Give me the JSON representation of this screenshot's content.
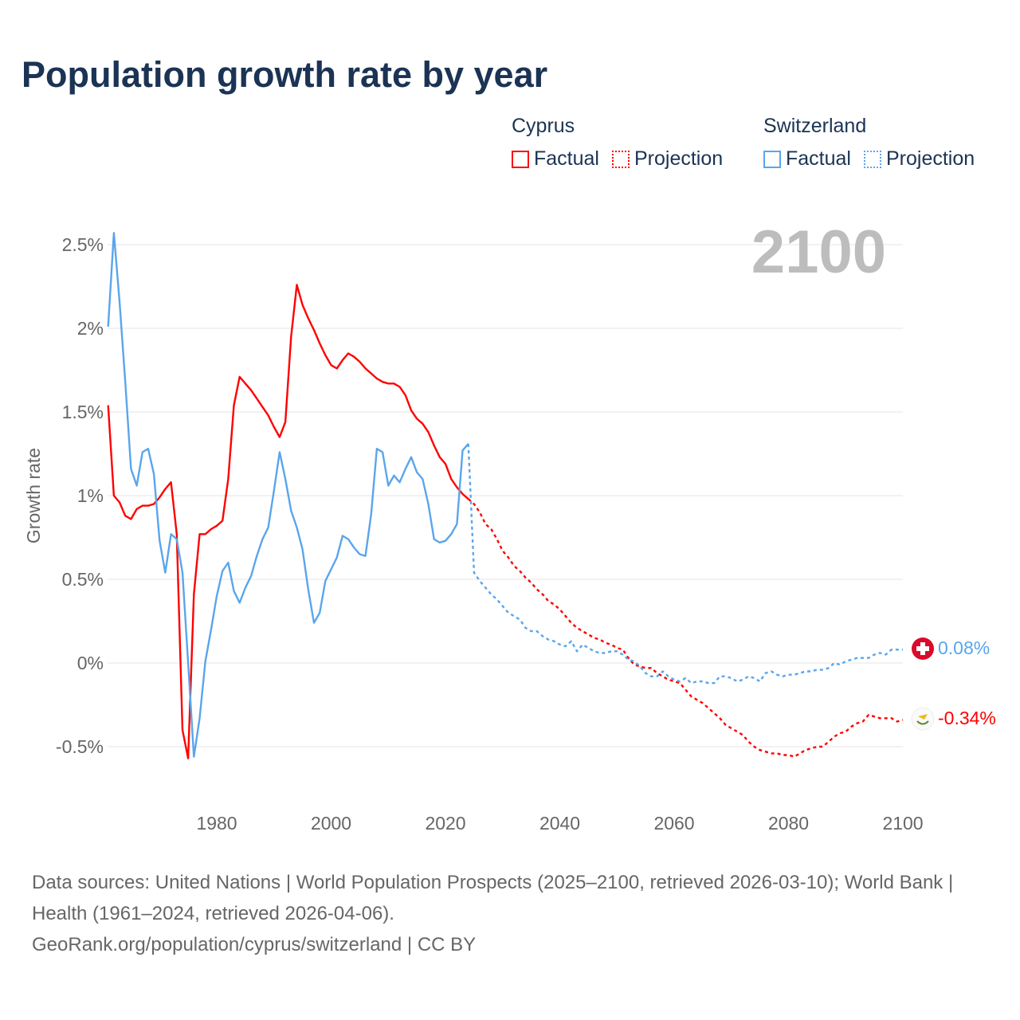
{
  "title": "Population growth rate by year",
  "legend": {
    "groups": [
      {
        "name": "Cyprus",
        "factual": "Factual",
        "projection": "Projection",
        "color": "#ff0000"
      },
      {
        "name": "Switzerland",
        "factual": "Factual",
        "projection": "Projection",
        "color": "#5aa5ec"
      }
    ]
  },
  "year_display": "2100",
  "end_labels": {
    "switzerland": "0.08%",
    "cyprus": "-0.34%"
  },
  "flags": {
    "switzerland": "swiss-flag-icon",
    "cyprus": "cyprus-flag-icon"
  },
  "sources": {
    "line1": "Data sources: United Nations | World Population Prospects (2025–2100, retrieved 2026-03-10); World Bank | Health (1961–2024, retrieved 2026-04-06).",
    "line2": "GeoRank.org/population/cyprus/switzerland | CC BY"
  },
  "chart_data": {
    "type": "line",
    "title": "Population growth rate by year",
    "xlabel": "",
    "ylabel": "Growth rate",
    "xlim": [
      1961,
      2100
    ],
    "ylim": [
      -0.65,
      2.65
    ],
    "grid": true,
    "legend_placement": "top-right",
    "x_ticks": [
      1980,
      2000,
      2020,
      2040,
      2060,
      2080,
      2100
    ],
    "x_tick_labels": [
      "1980",
      "2000",
      "2020",
      "2040",
      "2060",
      "2080",
      "2100"
    ],
    "y_ticks": [
      2.5,
      2,
      1.5,
      1,
      0.5,
      0,
      -0.5
    ],
    "y_tick_labels": [
      "2.5%",
      "2%",
      "1.5%",
      "1%",
      "0.5%",
      "0%",
      "-0.5%"
    ],
    "series": [
      {
        "name": "Cyprus Factual",
        "country": "Cyprus",
        "kind": "factual",
        "color": "#ff0000",
        "start_year": 1961,
        "values": [
          1.54,
          1.0,
          0.96,
          0.88,
          0.86,
          0.92,
          0.94,
          0.94,
          0.95,
          0.99,
          1.04,
          1.08,
          0.77,
          -0.4,
          -0.57,
          0.41,
          0.77,
          0.77,
          0.8,
          0.82,
          0.85,
          1.1,
          1.54,
          1.71,
          1.67,
          1.63,
          1.58,
          1.53,
          1.48,
          1.41,
          1.35,
          1.44,
          1.95,
          2.26,
          2.14,
          2.06,
          1.99,
          1.91,
          1.84,
          1.78,
          1.76,
          1.81,
          1.85,
          1.83,
          1.8,
          1.76,
          1.73,
          1.7,
          1.68,
          1.67,
          1.67,
          1.65,
          1.6,
          1.51,
          1.46,
          1.43,
          1.38,
          1.3,
          1.23,
          1.19,
          1.1,
          1.05,
          1.01,
          0.98
        ]
      },
      {
        "name": "Cyprus Projection",
        "country": "Cyprus",
        "kind": "projection",
        "color": "#ff0000",
        "start_year": 2025,
        "values": [
          0.95,
          0.9,
          0.83,
          0.8,
          0.74,
          0.67,
          0.63,
          0.58,
          0.55,
          0.51,
          0.48,
          0.44,
          0.41,
          0.37,
          0.35,
          0.32,
          0.28,
          0.24,
          0.21,
          0.19,
          0.17,
          0.15,
          0.14,
          0.12,
          0.11,
          0.09,
          0.08,
          0.03,
          -0.01,
          -0.02,
          -0.03,
          -0.03,
          -0.06,
          -0.08,
          -0.1,
          -0.11,
          -0.12,
          -0.16,
          -0.2,
          -0.22,
          -0.24,
          -0.27,
          -0.3,
          -0.33,
          -0.37,
          -0.39,
          -0.41,
          -0.43,
          -0.47,
          -0.5,
          -0.52,
          -0.53,
          -0.54,
          -0.54,
          -0.55,
          -0.55,
          -0.56,
          -0.54,
          -0.52,
          -0.51,
          -0.5,
          -0.5,
          -0.47,
          -0.44,
          -0.42,
          -0.41,
          -0.38,
          -0.36,
          -0.35,
          -0.31,
          -0.32,
          -0.33,
          -0.33,
          -0.33,
          -0.35,
          -0.34
        ]
      },
      {
        "name": "Switzerland Factual",
        "country": "Switzerland",
        "kind": "factual",
        "color": "#5aa5ec",
        "start_year": 1961,
        "values": [
          2.01,
          2.57,
          2.16,
          1.68,
          1.16,
          1.06,
          1.26,
          1.28,
          1.13,
          0.73,
          0.54,
          0.77,
          0.74,
          0.54,
          0.0,
          -0.56,
          -0.33,
          0.01,
          0.2,
          0.4,
          0.55,
          0.6,
          0.43,
          0.36,
          0.45,
          0.52,
          0.64,
          0.74,
          0.81,
          1.03,
          1.26,
          1.1,
          0.91,
          0.81,
          0.68,
          0.44,
          0.24,
          0.3,
          0.49,
          0.56,
          0.63,
          0.76,
          0.74,
          0.69,
          0.65,
          0.64,
          0.89,
          1.28,
          1.26,
          1.06,
          1.12,
          1.08,
          1.16,
          1.23,
          1.14,
          1.1,
          0.95,
          0.74,
          0.72,
          0.73,
          0.77,
          0.83,
          1.27,
          1.31
        ]
      },
      {
        "name": "Switzerland Projection",
        "country": "Switzerland",
        "kind": "projection",
        "color": "#5aa5ec",
        "start_year": 2025,
        "values": [
          0.54,
          0.49,
          0.45,
          0.41,
          0.38,
          0.34,
          0.3,
          0.28,
          0.26,
          0.21,
          0.19,
          0.19,
          0.16,
          0.14,
          0.13,
          0.11,
          0.1,
          0.13,
          0.07,
          0.11,
          0.09,
          0.07,
          0.06,
          0.06,
          0.07,
          0.07,
          0.05,
          0.02,
          0.01,
          -0.02,
          -0.06,
          -0.08,
          -0.08,
          -0.05,
          -0.08,
          -0.1,
          -0.11,
          -0.09,
          -0.12,
          -0.11,
          -0.11,
          -0.12,
          -0.12,
          -0.08,
          -0.08,
          -0.09,
          -0.11,
          -0.1,
          -0.08,
          -0.09,
          -0.11,
          -0.06,
          -0.05,
          -0.07,
          -0.08,
          -0.07,
          -0.07,
          -0.06,
          -0.05,
          -0.05,
          -0.04,
          -0.04,
          -0.03,
          0.0,
          -0.01,
          0.01,
          0.02,
          0.03,
          0.03,
          0.03,
          0.05,
          0.06,
          0.05,
          0.08,
          0.08,
          0.08
        ]
      }
    ]
  }
}
